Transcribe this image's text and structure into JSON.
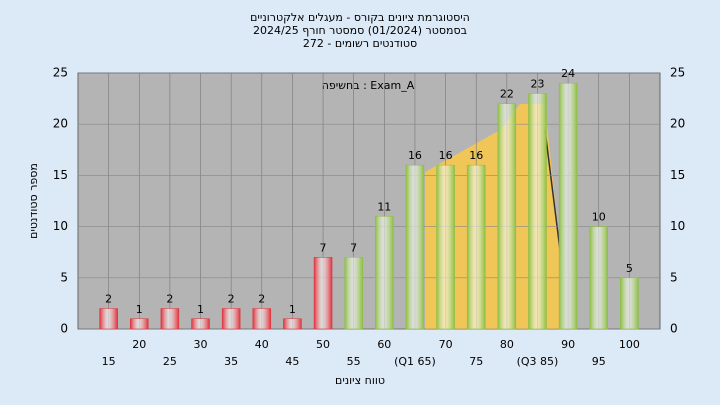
{
  "chart_data": {
    "type": "bar",
    "title": "היסטוגרמת ציונים בקורס - מעגלים אלקטרוניים",
    "subtitle": "בסמסטר  (01/2024)  סמסטר חורף 2024/25",
    "subtitle2": "סטודנטים רשומים - 272",
    "annotation": "בחשיפה : Exam_A",
    "y_label": "מספר סטודנטים",
    "x_label": "טווח ציונים",
    "categories": [
      "15",
      "20",
      "25",
      "30",
      "35",
      "40",
      "45",
      "50",
      "55",
      "60",
      "(Q1 65)",
      "70",
      "75",
      "80",
      "(Q3 85)",
      "90",
      "95",
      "100"
    ],
    "values": [
      2,
      1,
      2,
      1,
      2,
      2,
      1,
      7,
      7,
      11,
      16,
      16,
      16,
      22,
      23,
      24,
      10,
      5
    ],
    "colors": [
      "#e0303a",
      "#e0303a",
      "#e0303a",
      "#e0303a",
      "#e0303a",
      "#e0303a",
      "#e0303a",
      "#e0303a",
      "#8cbf3f",
      "#8cbf3f",
      "#8cbf3f",
      "#8cbf3f",
      "#8cbf3f",
      "#8cbf3f",
      "#8cbf3f",
      "#8cbf3f",
      "#8cbf3f",
      "#8cbf3f"
    ],
    "ylim": [
      0,
      25
    ],
    "yticks": [
      0,
      5,
      10,
      15,
      20,
      25
    ],
    "grid": true
  }
}
